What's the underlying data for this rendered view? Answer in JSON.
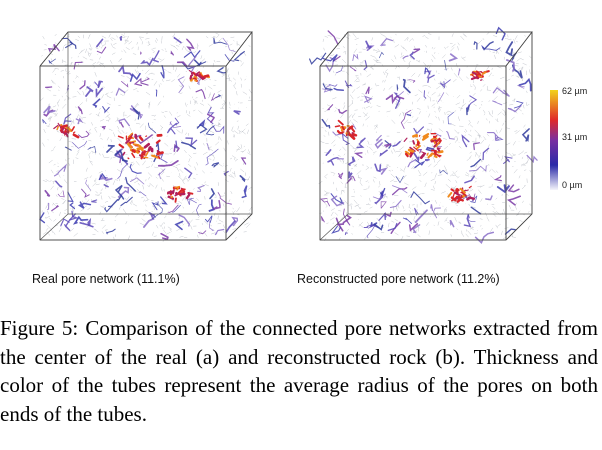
{
  "panels": [
    {
      "caption": "Real pore network (11.1%)"
    },
    {
      "caption": "Reconstructed pore network (11.2%)"
    }
  ],
  "colorbar": {
    "labels": [
      "62 µm",
      "31 µm",
      "0 µm"
    ],
    "colors": [
      "#f2d31a",
      "#e02a2a",
      "#7a2ea0",
      "#2a2aa8",
      "#f4f4fb"
    ]
  },
  "figure_caption": "Figure 5: Comparison of the connected pore networks extracted from the center of the real (a) and reconstructed rock (b). Thickness and color of the tubes represent the average radius of the pores on both ends of the tubes."
}
